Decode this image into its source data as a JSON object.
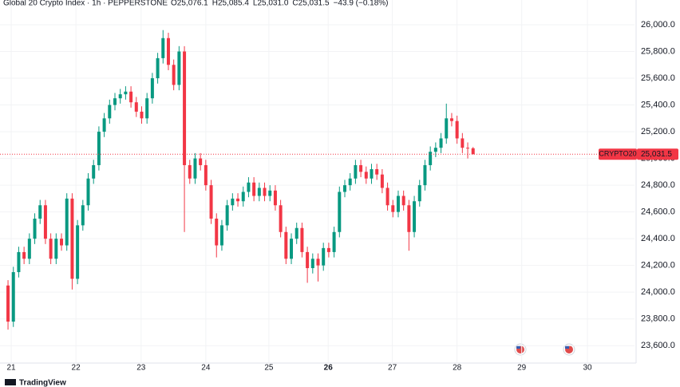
{
  "chart_data": {
    "type": "candlestick",
    "title": "Global 20 Crypto Index · 1h · PEPPERSTONE",
    "readout": [
      {
        "label": "O",
        "value": "25,076.1"
      },
      {
        "label": "H",
        "value": "25,085.4"
      },
      {
        "label": "L",
        "value": "25,031.0"
      },
      {
        "label": "C",
        "value": "25,031.5"
      }
    ],
    "change": "−43.9 (−0.18%)",
    "symbol": "CRYPTO20",
    "last_label": "25,031.5",
    "brand": "TradingView",
    "up_color": "#089981",
    "down_color": "#f23645",
    "grid": true,
    "xlim": [
      -1.5,
      117.2
    ],
    "xticks": [
      {
        "value": 0.6,
        "label": "21"
      },
      {
        "value": 12.7,
        "label": "22"
      },
      {
        "value": 24.9,
        "label": "23"
      },
      {
        "value": 37.0,
        "label": "24"
      },
      {
        "value": 48.8,
        "label": "25"
      },
      {
        "value": 59.9,
        "label": "26"
      },
      {
        "value": 71.9,
        "label": "27"
      },
      {
        "value": 84.0,
        "label": "28"
      },
      {
        "value": 96.1,
        "label": "29"
      },
      {
        "value": 108.4,
        "label": "30"
      }
    ],
    "ylim": [
      23470,
      26185
    ],
    "yticks": [
      {
        "value": 23600,
        "label": "23,600.0"
      },
      {
        "value": 23800,
        "label": "23,800.0"
      },
      {
        "value": 24000,
        "label": "24,000.0"
      },
      {
        "value": 24200,
        "label": "24,200.0"
      },
      {
        "value": 24400,
        "label": "24,400.0"
      },
      {
        "value": 24600,
        "label": "24,600.0"
      },
      {
        "value": 24800,
        "label": "24,800.0"
      },
      {
        "value": 25000,
        "label": "25,000.0"
      },
      {
        "value": 25200,
        "label": "25,200.0"
      },
      {
        "value": 25400,
        "label": "25,400.0"
      },
      {
        "value": 25600,
        "label": "25,600.0"
      },
      {
        "value": 25800,
        "label": "25,800.0"
      },
      {
        "value": 26000,
        "label": "26,000.0"
      }
    ],
    "open": [
      24050,
      23780,
      24150,
      24300,
      24250,
      24400,
      24550,
      24650,
      24400,
      24250,
      24400,
      24350,
      24700,
      24100,
      24500,
      24650,
      24850,
      24950,
      25200,
      25300,
      25400,
      25450,
      25480,
      25500,
      25420,
      25350,
      25300,
      25450,
      25600,
      25750,
      25900,
      25700,
      25550,
      25800,
      24950,
      24850,
      25000,
      24950,
      24800,
      24550,
      24350,
      24500,
      24650,
      24700,
      24680,
      24750,
      24820,
      24720,
      24780,
      24720,
      24760,
      24650,
      24450,
      24250,
      24400,
      24480,
      24300,
      24180,
      24250,
      24200,
      24330,
      24300,
      24450,
      24750,
      24800,
      24850,
      24950,
      24900,
      24850,
      24920,
      24880,
      24780,
      24650,
      24600,
      24720,
      24650,
      24450,
      24680,
      24800,
      24950,
      25050,
      25080,
      25150,
      25300,
      25280,
      25150,
      25080,
      25076.1
    ],
    "high": [
      24090,
      24190,
      24340,
      24340,
      24440,
      24590,
      24690,
      24690,
      24440,
      24440,
      24440,
      24740,
      24740,
      24540,
      24690,
      24890,
      24990,
      25240,
      25340,
      25440,
      25490,
      25520,
      25540,
      25540,
      25460,
      25390,
      25490,
      25640,
      25790,
      25960,
      25940,
      25740,
      25840,
      25840,
      24990,
      25040,
      25040,
      24990,
      24840,
      24590,
      24540,
      24690,
      24740,
      24740,
      24790,
      24860,
      24860,
      24820,
      24820,
      24800,
      24800,
      24690,
      24490,
      24440,
      24520,
      24520,
      24340,
      24290,
      24290,
      24370,
      24370,
      24490,
      24790,
      24840,
      24890,
      24990,
      24990,
      24940,
      24960,
      24960,
      24920,
      24820,
      24690,
      24760,
      24760,
      24690,
      24720,
      24840,
      24990,
      25090,
      25120,
      25190,
      25410,
      25340,
      25320,
      25190,
      25120,
      25085.4
    ],
    "low": [
      23720,
      23740,
      24110,
      24210,
      24210,
      24360,
      24510,
      24360,
      24210,
      24210,
      24310,
      24310,
      24020,
      24060,
      24460,
      24610,
      24810,
      24910,
      25160,
      25260,
      25360,
      25410,
      25440,
      25380,
      25310,
      25260,
      25260,
      25410,
      25560,
      25710,
      25660,
      25510,
      25510,
      24450,
      24810,
      24810,
      24910,
      24760,
      24510,
      24260,
      24310,
      24460,
      24610,
      24640,
      24640,
      24710,
      24680,
      24680,
      24680,
      24680,
      24610,
      24410,
      24210,
      24210,
      24360,
      24260,
      24070,
      24140,
      24080,
      24160,
      24260,
      24260,
      24410,
      24710,
      24760,
      24810,
      24860,
      24810,
      24810,
      24840,
      24740,
      24610,
      24560,
      24560,
      24610,
      24310,
      24410,
      24640,
      24760,
      24910,
      25010,
      25040,
      25110,
      25240,
      25110,
      25040,
      25000,
      25031.0
    ],
    "close": [
      23780,
      24150,
      24300,
      24250,
      24400,
      24550,
      24650,
      24400,
      24250,
      24400,
      24350,
      24700,
      24100,
      24500,
      24650,
      24850,
      24950,
      25200,
      25300,
      25400,
      25450,
      25480,
      25500,
      25420,
      25350,
      25300,
      25450,
      25600,
      25750,
      25900,
      25700,
      25550,
      25800,
      24950,
      24850,
      25000,
      24950,
      24800,
      24550,
      24350,
      24500,
      24650,
      24700,
      24680,
      24750,
      24820,
      24720,
      24780,
      24720,
      24760,
      24650,
      24450,
      24250,
      24400,
      24480,
      24300,
      24180,
      24250,
      24200,
      24330,
      24300,
      24450,
      24750,
      24800,
      24850,
      24950,
      24900,
      24850,
      24920,
      24880,
      24780,
      24650,
      24600,
      24720,
      24650,
      24450,
      24680,
      24800,
      24950,
      25050,
      25080,
      25150,
      25300,
      25280,
      25150,
      25080,
      25076.1,
      25031.5
    ]
  }
}
